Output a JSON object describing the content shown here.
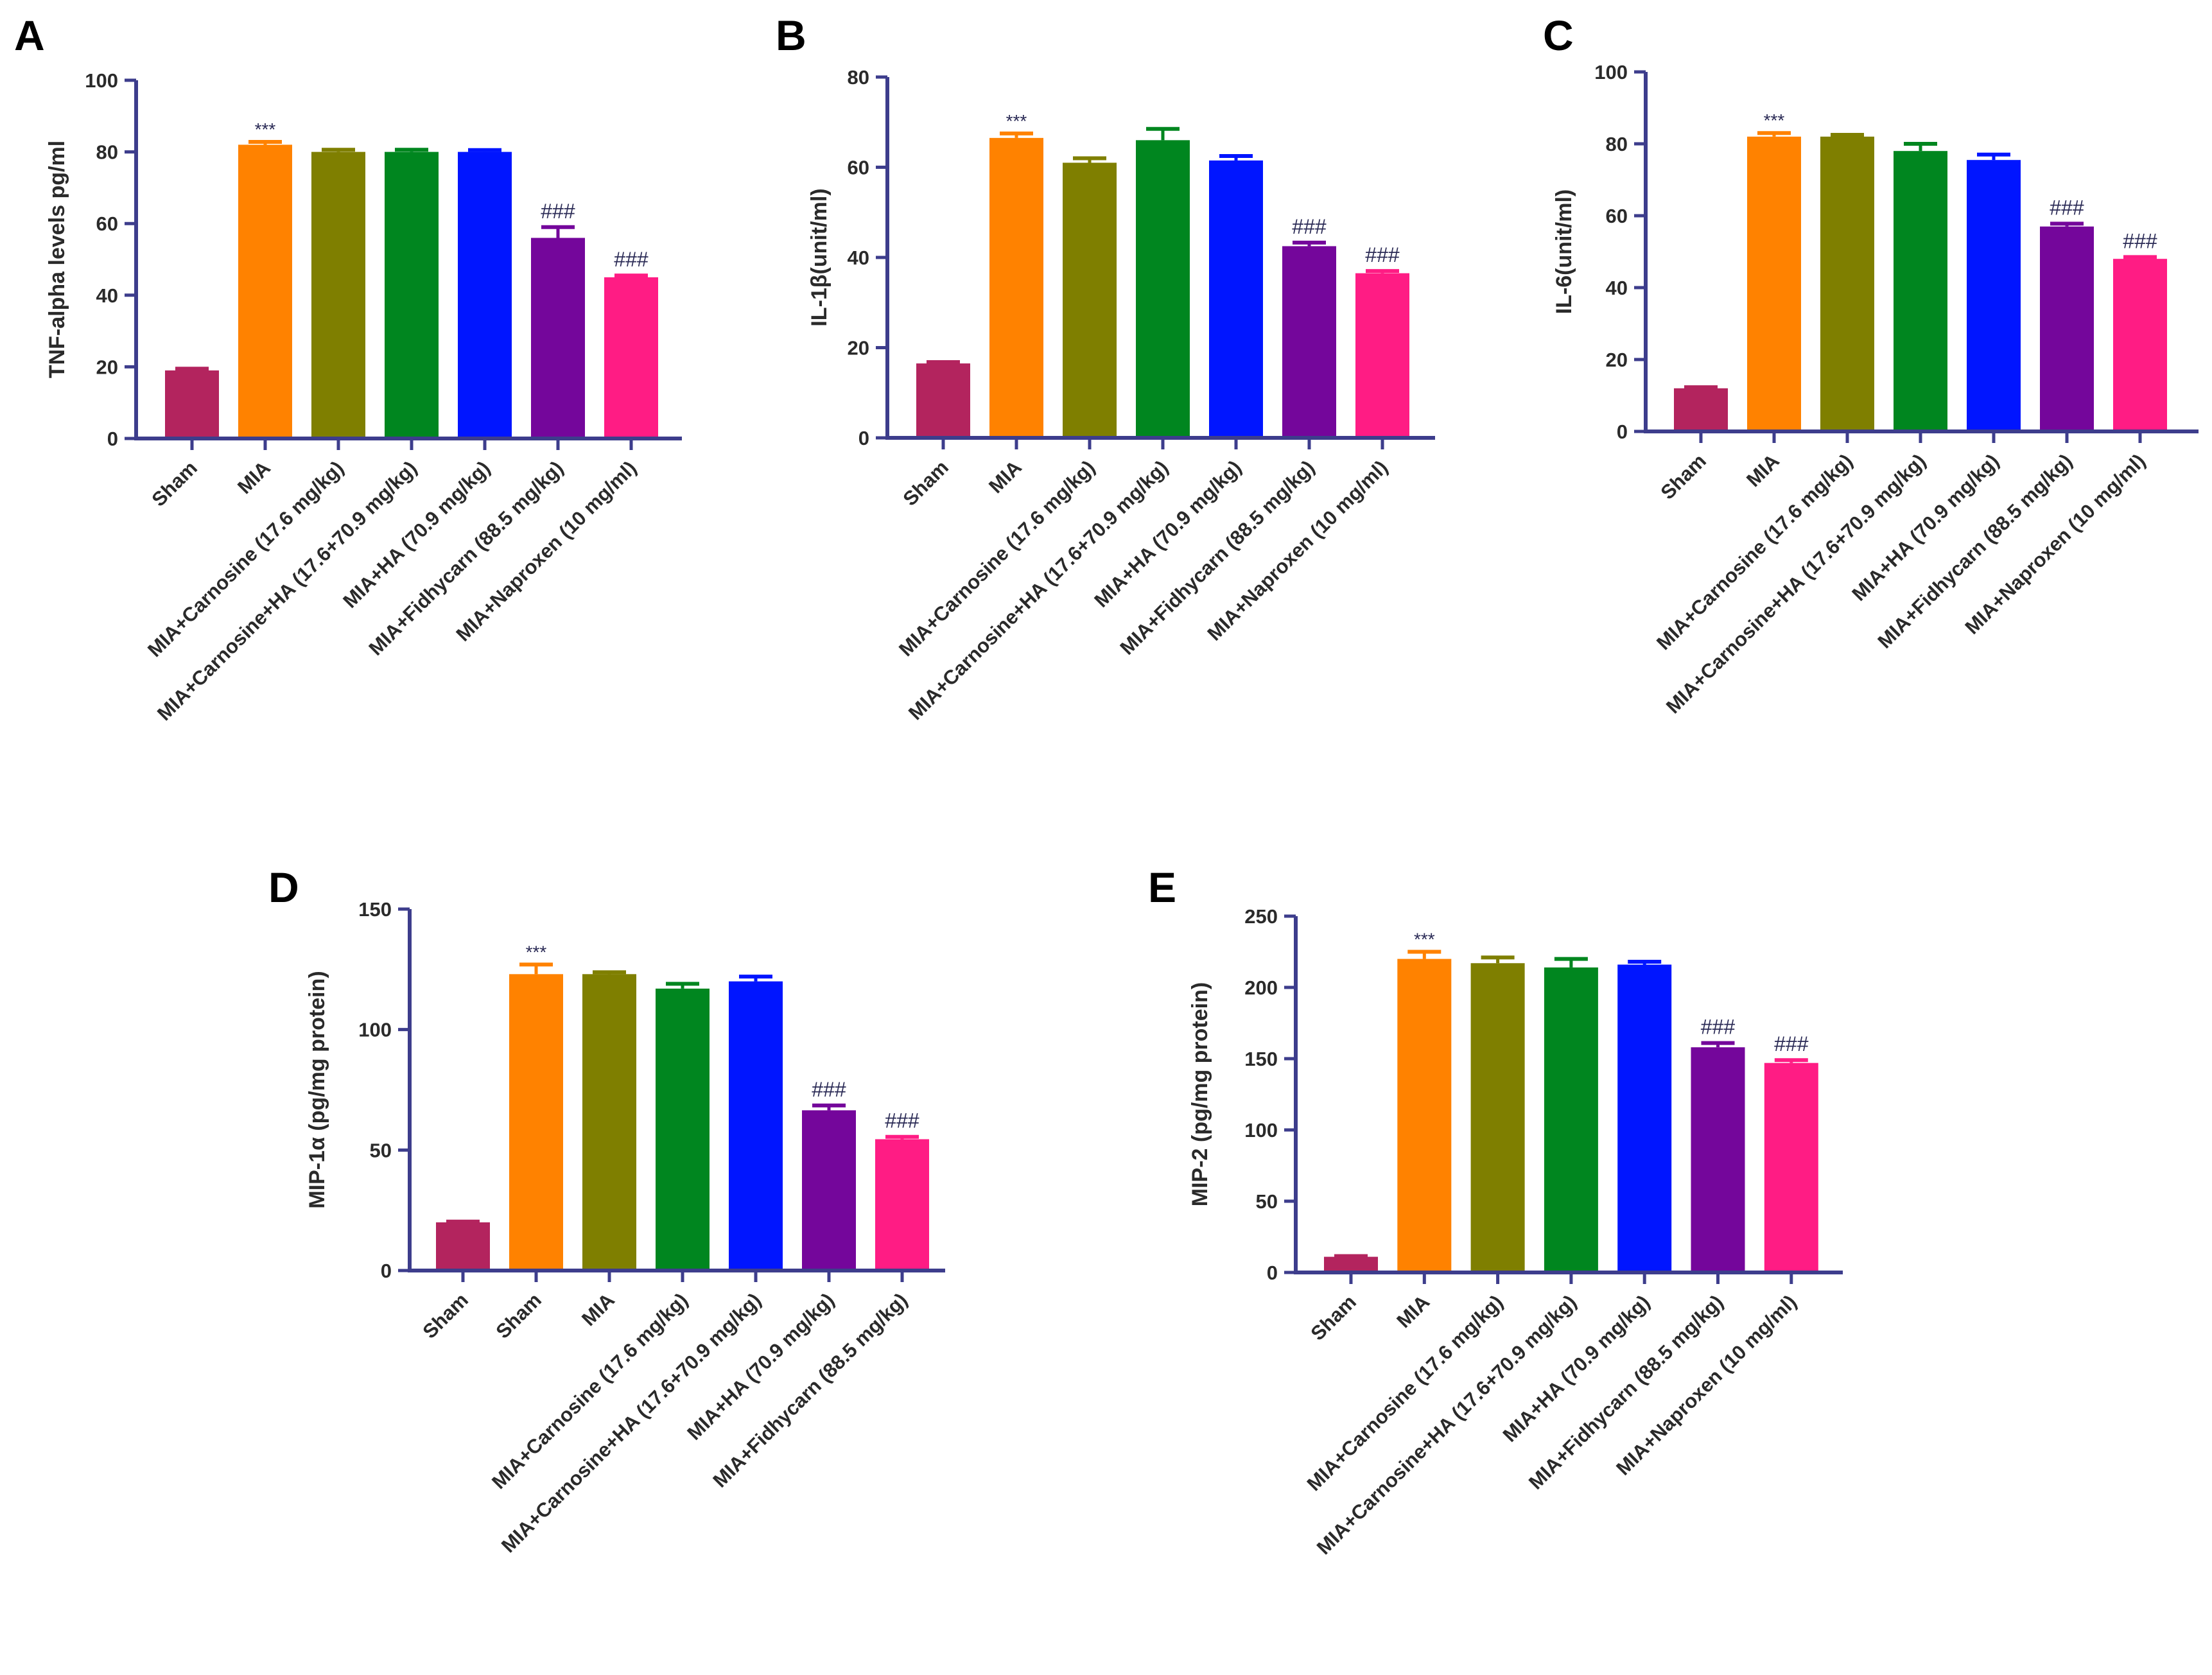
{
  "colors": [
    "#b3245e",
    "#ff8200",
    "#7f7f00",
    "#00861f",
    "#0015ff",
    "#74069b",
    "#ff1c84"
  ],
  "chart_data": [
    {
      "panel": "A",
      "type": "bar",
      "ylabel": "TNF-alpha levels pg/ml",
      "ylim": [
        0,
        100
      ],
      "yticks": [
        0,
        20,
        40,
        60,
        80,
        100
      ],
      "categories": [
        "Sham",
        "MIA",
        "MIA+Carnosine (17.6 mg/kg)",
        "MIA+Carnosine+HA (17.6+70.9 mg/kg)",
        "MIA+HA (70.9 mg/kg)",
        "MIA+Fidhycarn (88.5 mg/kg)",
        "MIA+Naproxen (10 mg/ml)"
      ],
      "values": [
        19,
        82,
        80,
        80,
        80,
        56,
        45
      ],
      "errors": [
        0.5,
        0.8,
        0.6,
        0.6,
        0.5,
        3,
        0.5
      ],
      "annotations": [
        "",
        "***",
        "",
        "",
        "",
        "###",
        "###"
      ]
    },
    {
      "panel": "B",
      "type": "bar",
      "ylabel": "IL-1β(unit/ml)",
      "ylim": [
        0,
        80
      ],
      "yticks": [
        0,
        20,
        40,
        60,
        80
      ],
      "categories": [
        "Sham",
        "MIA",
        "MIA+Carnosine (17.6 mg/kg)",
        "MIA+Carnosine+HA (17.6+70.9 mg/kg)",
        "MIA+HA (70.9 mg/kg)",
        "MIA+Fidhycarn (88.5 mg/kg)",
        "MIA+Naproxen (10 mg/ml)"
      ],
      "values": [
        16.5,
        66.5,
        61,
        66,
        61.5,
        42.5,
        36.5
      ],
      "errors": [
        0.3,
        1,
        1,
        2.5,
        1,
        0.8,
        0.5
      ],
      "annotations": [
        "",
        "***",
        "",
        "",
        "",
        "###",
        "###"
      ]
    },
    {
      "panel": "C",
      "type": "bar",
      "ylabel": "IL-6(unit/ml)",
      "ylim": [
        0,
        100
      ],
      "yticks": [
        0,
        20,
        40,
        60,
        80,
        100
      ],
      "categories": [
        "Sham",
        "MIA",
        "MIA+Carnosine (17.6 mg/kg)",
        "MIA+Carnosine+HA (17.6+70.9 mg/kg)",
        "MIA+HA (70.9 mg/kg)",
        "MIA+Fidhycarn (88.5 mg/kg)",
        "MIA+Naproxen (10 mg/ml)"
      ],
      "values": [
        12,
        82,
        82,
        78,
        75.5,
        57,
        48
      ],
      "errors": [
        0.3,
        1,
        0.5,
        2,
        1.5,
        0.8,
        0.5
      ],
      "annotations": [
        "",
        "***",
        "",
        "",
        "",
        "###",
        "###"
      ]
    },
    {
      "panel": "D",
      "type": "bar",
      "ylabel": "MIP-1α (pg/mg protein)",
      "ylim": [
        0,
        150
      ],
      "yticks": [
        0,
        50,
        100,
        150
      ],
      "categories": [
        "Sham",
        "Sham",
        "MIA",
        "MIA+Carnosine (17.6 mg/kg)",
        "MIA+Carnosine+HA (17.6+70.9 mg/kg)",
        "MIA+HA (70.9 mg/kg)",
        "MIA+Fidhycarn (88.5 mg/kg)"
      ],
      "values": [
        20,
        123,
        123,
        117,
        120,
        66.5,
        54.5
      ],
      "errors": [
        0.3,
        4,
        0.8,
        2,
        2,
        2,
        1
      ],
      "annotations": [
        "",
        "***",
        "",
        "",
        "",
        "###",
        "###"
      ]
    },
    {
      "panel": "E",
      "type": "bar",
      "ylabel": "MIP-2 (pg/mg protein)",
      "ylim": [
        0,
        250
      ],
      "yticks": [
        0,
        50,
        100,
        150,
        200,
        250
      ],
      "categories": [
        "Sham",
        "MIA",
        "MIA+Carnosine (17.6 mg/kg)",
        "MIA+Carnosine+HA (17.6+70.9 mg/kg)",
        "MIA+HA (70.9 mg/kg)",
        "MIA+Fidhycarn (88.5 mg/kg)",
        "MIA+Naproxen (10 mg/ml)"
      ],
      "values": [
        11,
        220,
        217,
        214,
        216,
        158,
        147
      ],
      "errors": [
        0.5,
        5,
        4,
        6,
        2,
        3,
        2
      ],
      "annotations": [
        "",
        "***",
        "",
        "",
        "",
        "###",
        "###"
      ]
    }
  ]
}
